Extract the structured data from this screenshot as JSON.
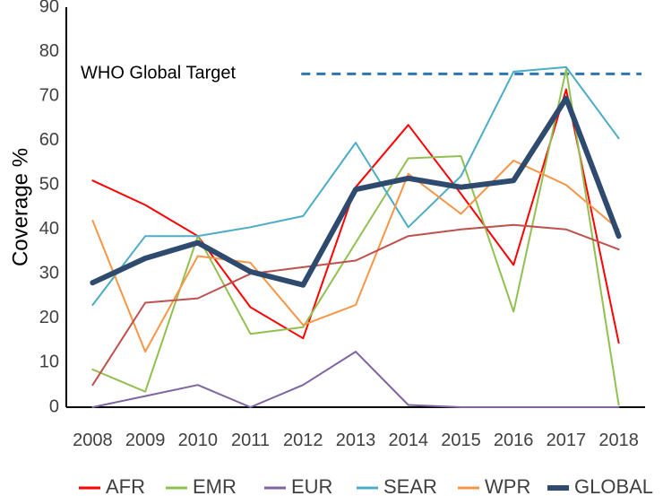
{
  "chart_data": {
    "type": "line",
    "ylabel": "Coverage %",
    "xlabel": "",
    "ylim": [
      0,
      90
    ],
    "yticks": [
      0,
      10,
      20,
      30,
      40,
      50,
      60,
      70,
      80,
      90
    ],
    "x": [
      "2008",
      "2009",
      "2010",
      "2011",
      "2012",
      "2013",
      "2014",
      "2015",
      "2016",
      "2017",
      "2018"
    ],
    "grid": false,
    "legend_position": "bottom",
    "series": [
      {
        "name": "AFR",
        "color": "#ff0000",
        "width": "thin",
        "values": [
          51,
          45.5,
          38.5,
          22.5,
          15.5,
          49.5,
          63.5,
          48,
          32,
          71.5,
          14.5
        ]
      },
      {
        "name": "EMR",
        "color": "#92c050",
        "width": "thin",
        "values": [
          8.5,
          3.5,
          38.5,
          16.5,
          18,
          37,
          56,
          56.5,
          21.5,
          76,
          0.5
        ]
      },
      {
        "name": "EUR",
        "color": "#8064a2",
        "width": "thin",
        "values": [
          0,
          2.5,
          5,
          0,
          5,
          12.5,
          0.5,
          0,
          0,
          0,
          0
        ]
      },
      {
        "name": "SEAR",
        "color": "#4bacc6",
        "width": "thin",
        "values": [
          23,
          38.5,
          38.5,
          40.5,
          43,
          59.5,
          40.5,
          52,
          75.5,
          76.5,
          60.5
        ]
      },
      {
        "name": "WPR",
        "color": "#f79646",
        "width": "thin",
        "values": [
          42,
          12.5,
          34,
          32.5,
          18.5,
          23,
          52.5,
          43.5,
          55.5,
          50,
          40
        ]
      },
      {
        "name": "",
        "color": "#c0504d",
        "width": "thin",
        "values": [
          5,
          23.5,
          24.5,
          30,
          31.5,
          33,
          38.5,
          40,
          41,
          40,
          35.5
        ]
      },
      {
        "name": "GLOBAL",
        "color": "#2e4a6e",
        "width": "thick",
        "values": [
          28,
          33.5,
          37,
          30.5,
          27.5,
          49,
          51.5,
          49.5,
          51,
          69.5,
          38.5
        ]
      }
    ],
    "target": {
      "label": "WHO Global Target",
      "value": 75,
      "color": "#2e75b6",
      "x_start": "2012"
    }
  }
}
